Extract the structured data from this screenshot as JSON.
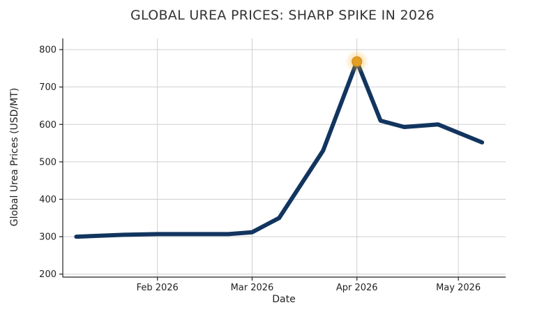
{
  "chart_data": {
    "type": "line",
    "title": "GLOBAL UREA PRICES: SHARP SPIKE IN 2026",
    "xlabel": "Date",
    "ylabel": "Global Urea Prices (USD/MT)",
    "x": [
      "2026-01-08",
      "2026-01-22",
      "2026-02-01",
      "2026-02-22",
      "2026-03-01",
      "2026-03-09",
      "2026-03-22",
      "2026-04-01",
      "2026-04-08",
      "2026-04-15",
      "2026-04-25",
      "2026-05-08"
    ],
    "series": [
      {
        "values": [
          300,
          305,
          307,
          307,
          312,
          350,
          530,
          768,
          610,
          593,
          600,
          552
        ]
      }
    ],
    "xticks": [
      {
        "date": "2026-02-01",
        "label": "Feb 2026"
      },
      {
        "date": "2026-03-01",
        "label": "Mar 2026"
      },
      {
        "date": "2026-04-01",
        "label": "Apr 2026"
      },
      {
        "date": "2026-05-01",
        "label": "May 2026"
      }
    ],
    "yticks": [
      200,
      300,
      400,
      500,
      600,
      700,
      800
    ],
    "xlim": [
      "2026-01-04",
      "2026-05-15"
    ],
    "ylim": [
      192,
      830
    ],
    "grid": true,
    "highlight": {
      "date": "2026-04-01",
      "value": 768
    },
    "colors": {
      "line": "#12355f",
      "highlight": "#e39d22",
      "glow": "#f7b733"
    }
  }
}
